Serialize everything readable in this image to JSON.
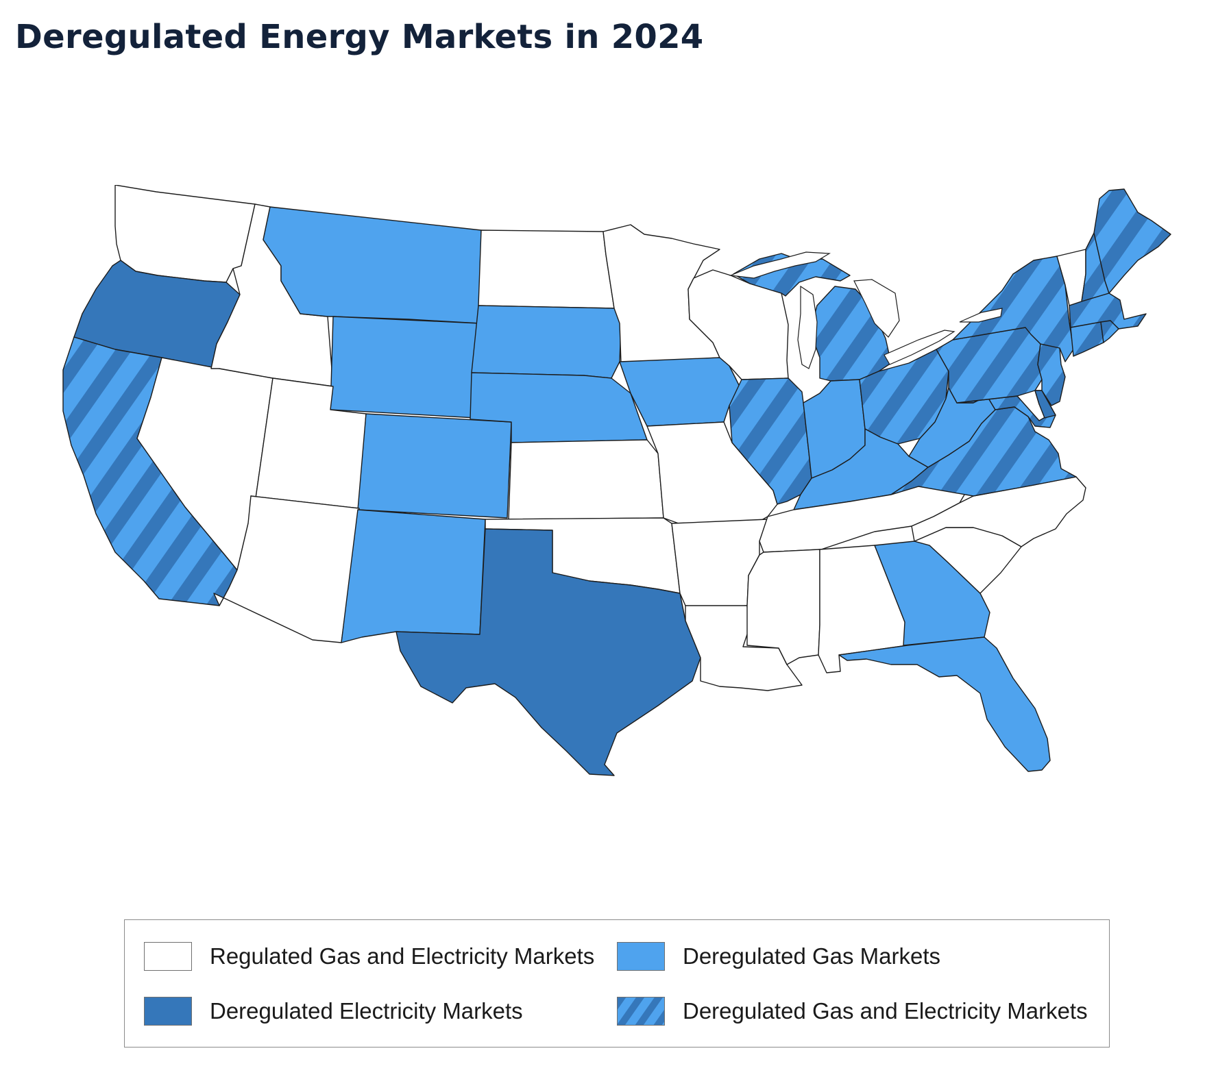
{
  "title": "Deregulated Energy Markets in 2024",
  "colors": {
    "regulated": "#ffffff",
    "deregulated_gas": "#4fa3ee",
    "deregulated_electricity": "#3577ba",
    "border": "#1c1c1c"
  },
  "legend": {
    "items": [
      {
        "key": "regulated",
        "label": "Regulated Gas and Electricity Markets",
        "swatch": "solid-white"
      },
      {
        "key": "gas",
        "label": "Deregulated Gas Markets",
        "swatch": "solid-light-blue"
      },
      {
        "key": "electricity",
        "label": "Deregulated Electricity Markets",
        "swatch": "solid-dark-blue"
      },
      {
        "key": "both",
        "label": "Deregulated Gas and Electricity Markets",
        "swatch": "striped-blue"
      }
    ]
  },
  "map": {
    "region": "Contiguous United States",
    "categories": {
      "regulated": [
        "WA",
        "ID",
        "NV",
        "UT",
        "AZ",
        "ND",
        "MN",
        "WI",
        "KS",
        "OK",
        "MO",
        "AR",
        "LA",
        "MS",
        "AL",
        "TN",
        "NC",
        "SC",
        "VT"
      ],
      "gas": [
        "MT",
        "WY",
        "CO",
        "NM",
        "SD",
        "NE",
        "IA",
        "IN",
        "KY",
        "WV",
        "GA",
        "FL"
      ],
      "electricity": [
        "OR",
        "TX",
        "DE"
      ],
      "both": [
        "CA",
        "IL",
        "MI",
        "OH",
        "PA",
        "NY",
        "VA",
        "MD",
        "NJ",
        "CT",
        "RI",
        "MA",
        "NH",
        "ME",
        "DC"
      ]
    }
  }
}
